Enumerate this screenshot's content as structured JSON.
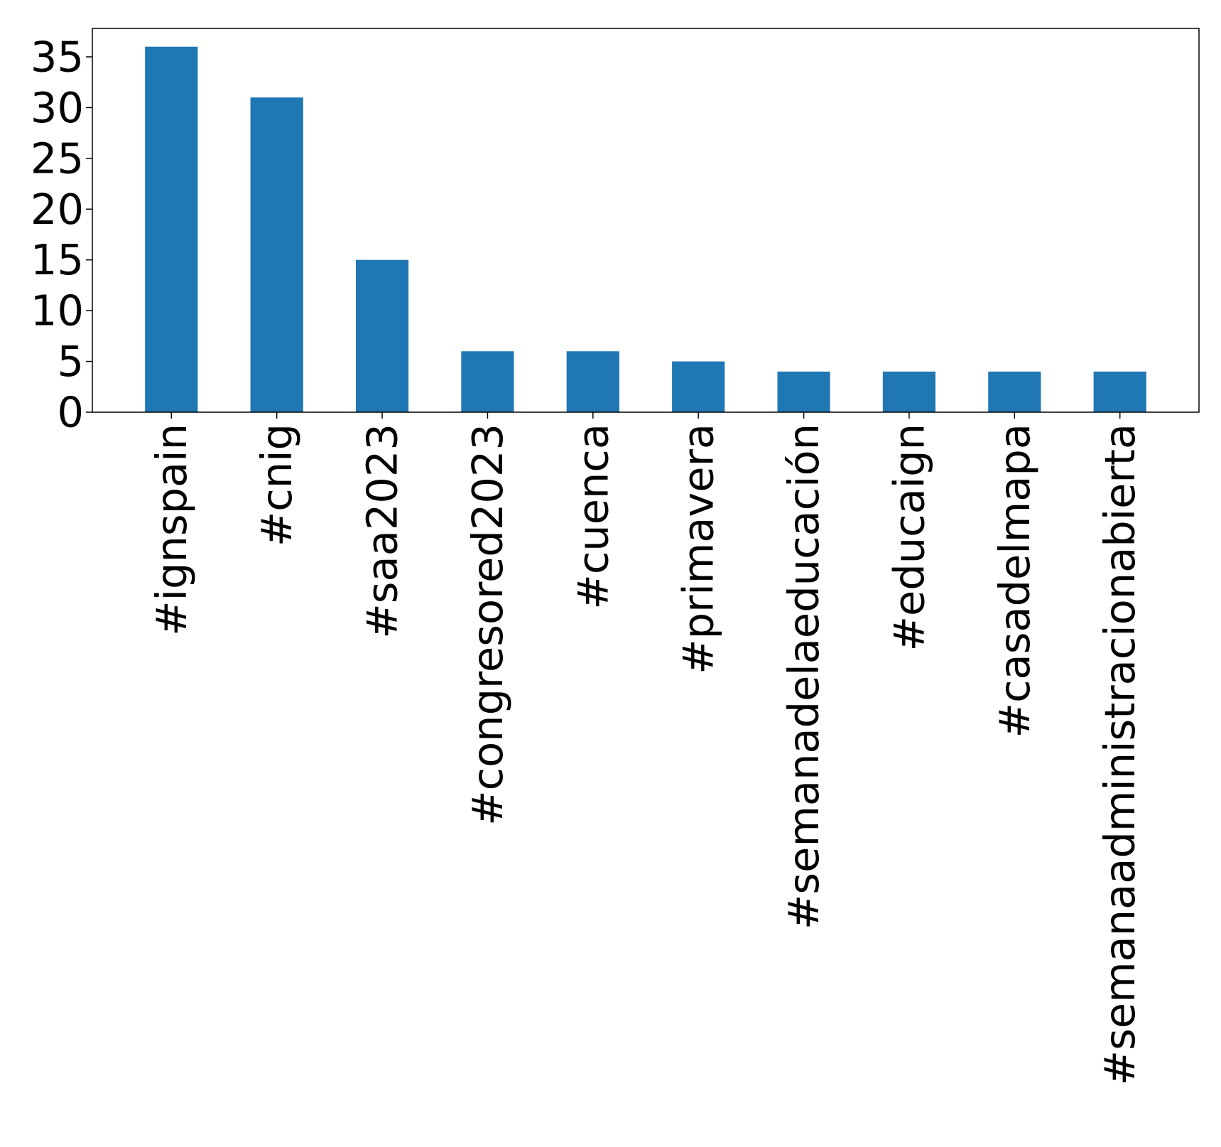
{
  "chart_data": {
    "type": "bar",
    "title": "",
    "xlabel": "",
    "ylabel": "",
    "categories": [
      "#ignspain",
      "#cnig",
      "#saa2023",
      "#congresored2023",
      "#cuenca",
      "#primavera",
      "#semanadelaeducación",
      "#educaign",
      "#casadelmapa",
      "#semanaadministracionabierta"
    ],
    "values": [
      36,
      31,
      15,
      6,
      6,
      5,
      4,
      4,
      4,
      4
    ],
    "ylim": [
      0,
      37.8
    ],
    "yticks": [
      0,
      5,
      10,
      15,
      20,
      25,
      30,
      35
    ],
    "grid": false,
    "legend": "none",
    "bar_color": "#1f77b4"
  }
}
